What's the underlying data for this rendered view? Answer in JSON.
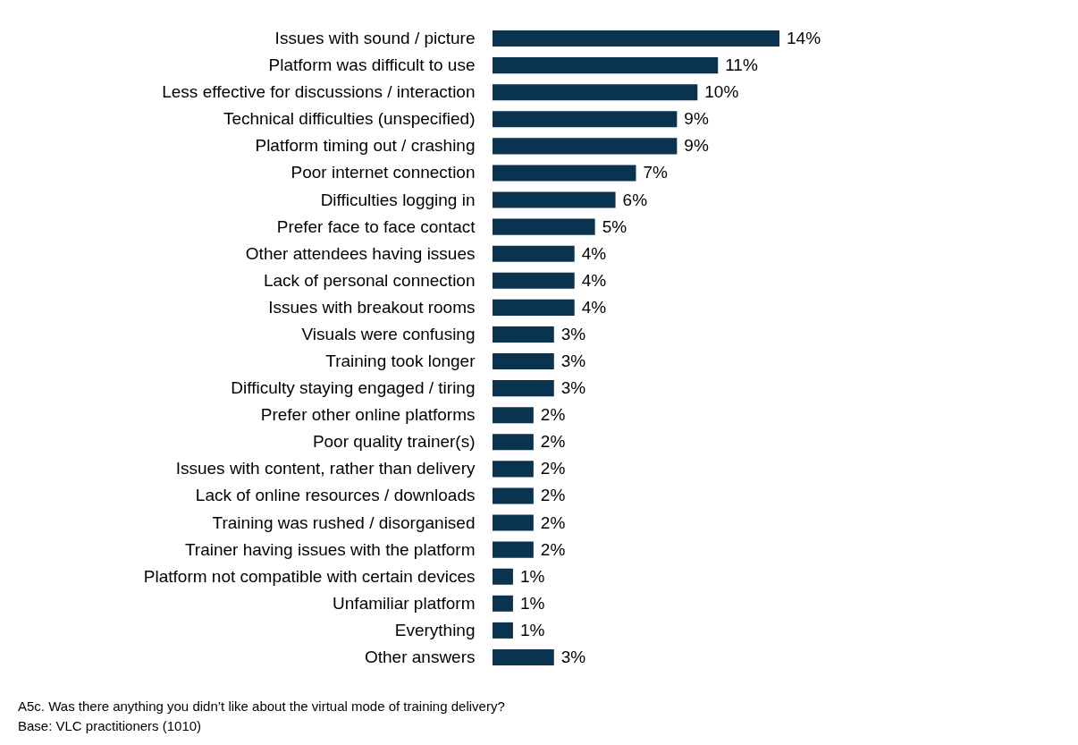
{
  "chart_data": {
    "type": "bar",
    "orientation": "horizontal",
    "categories": [
      "Issues with sound / picture",
      "Platform was difficult to use",
      "Less effective for discussions / interaction",
      "Technical difficulties (unspecified)",
      "Platform timing out / crashing",
      "Poor internet connection",
      "Difficulties logging in",
      "Prefer face to face contact",
      "Other attendees having issues",
      "Lack of personal connection",
      "Issues with breakout rooms",
      "Visuals were confusing",
      "Training took longer",
      "Difficulty staying engaged / tiring",
      "Prefer other online platforms",
      "Poor quality trainer(s)",
      "Issues with content, rather than delivery",
      "Lack of online resources / downloads",
      "Training was rushed / disorganised",
      "Trainer having issues with the platform",
      "Platform not compatible with certain devices",
      "Unfamiliar platform",
      "Everything",
      "Other answers"
    ],
    "values": [
      14,
      11,
      10,
      9,
      9,
      7,
      6,
      5,
      4,
      4,
      4,
      3,
      3,
      3,
      2,
      2,
      2,
      2,
      2,
      2,
      1,
      1,
      1,
      3
    ],
    "value_labels": [
      "14%",
      "11%",
      "10%",
      "9%",
      "9%",
      "7%",
      "6%",
      "5%",
      "4%",
      "4%",
      "4%",
      "3%",
      "3%",
      "3%",
      "2%",
      "2%",
      "2%",
      "2%",
      "2%",
      "2%",
      "1%",
      "1%",
      "1%",
      "3%"
    ],
    "color": "#0a3350",
    "grid": false,
    "annotations": [
      "A5c. Was there anything you didn’t like about the virtual mode of training delivery?",
      "Base: VLC practitioners (1010)"
    ]
  }
}
